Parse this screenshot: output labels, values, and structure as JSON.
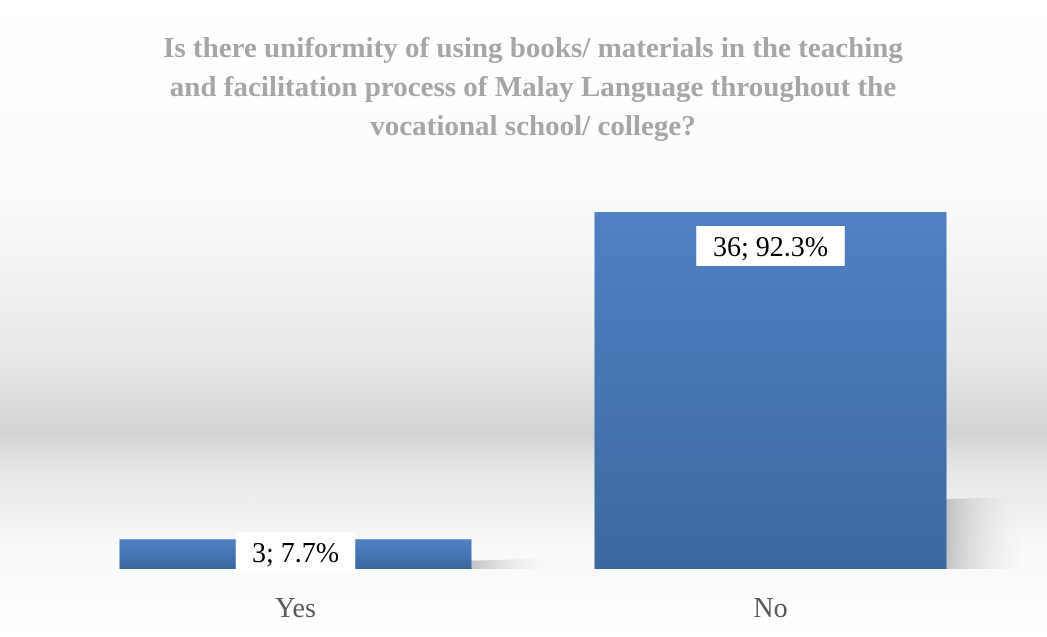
{
  "chart_data": {
    "type": "bar",
    "title_lines": [
      "Is there uniformity of using books/ materials in the teaching",
      "and facilitation process of Malay Language throughout the",
      "vocational school/ college?"
    ],
    "categories": [
      "Yes",
      "No"
    ],
    "values": [
      3,
      36
    ],
    "percentages": [
      "7.7%",
      "92.3%"
    ],
    "data_labels": [
      "3; 7.7%",
      "36; 92.3%"
    ],
    "ylim": [
      0,
      36
    ],
    "xlabel": "",
    "ylabel": "",
    "grid": false,
    "legend": "none",
    "colors": {
      "bar_top": "#4f81c4",
      "bar_bottom": "#3b689f",
      "title": "#a6a6a6",
      "category_label": "#595959",
      "data_label": "#000000",
      "plot_band": "#d9d9d9"
    }
  }
}
